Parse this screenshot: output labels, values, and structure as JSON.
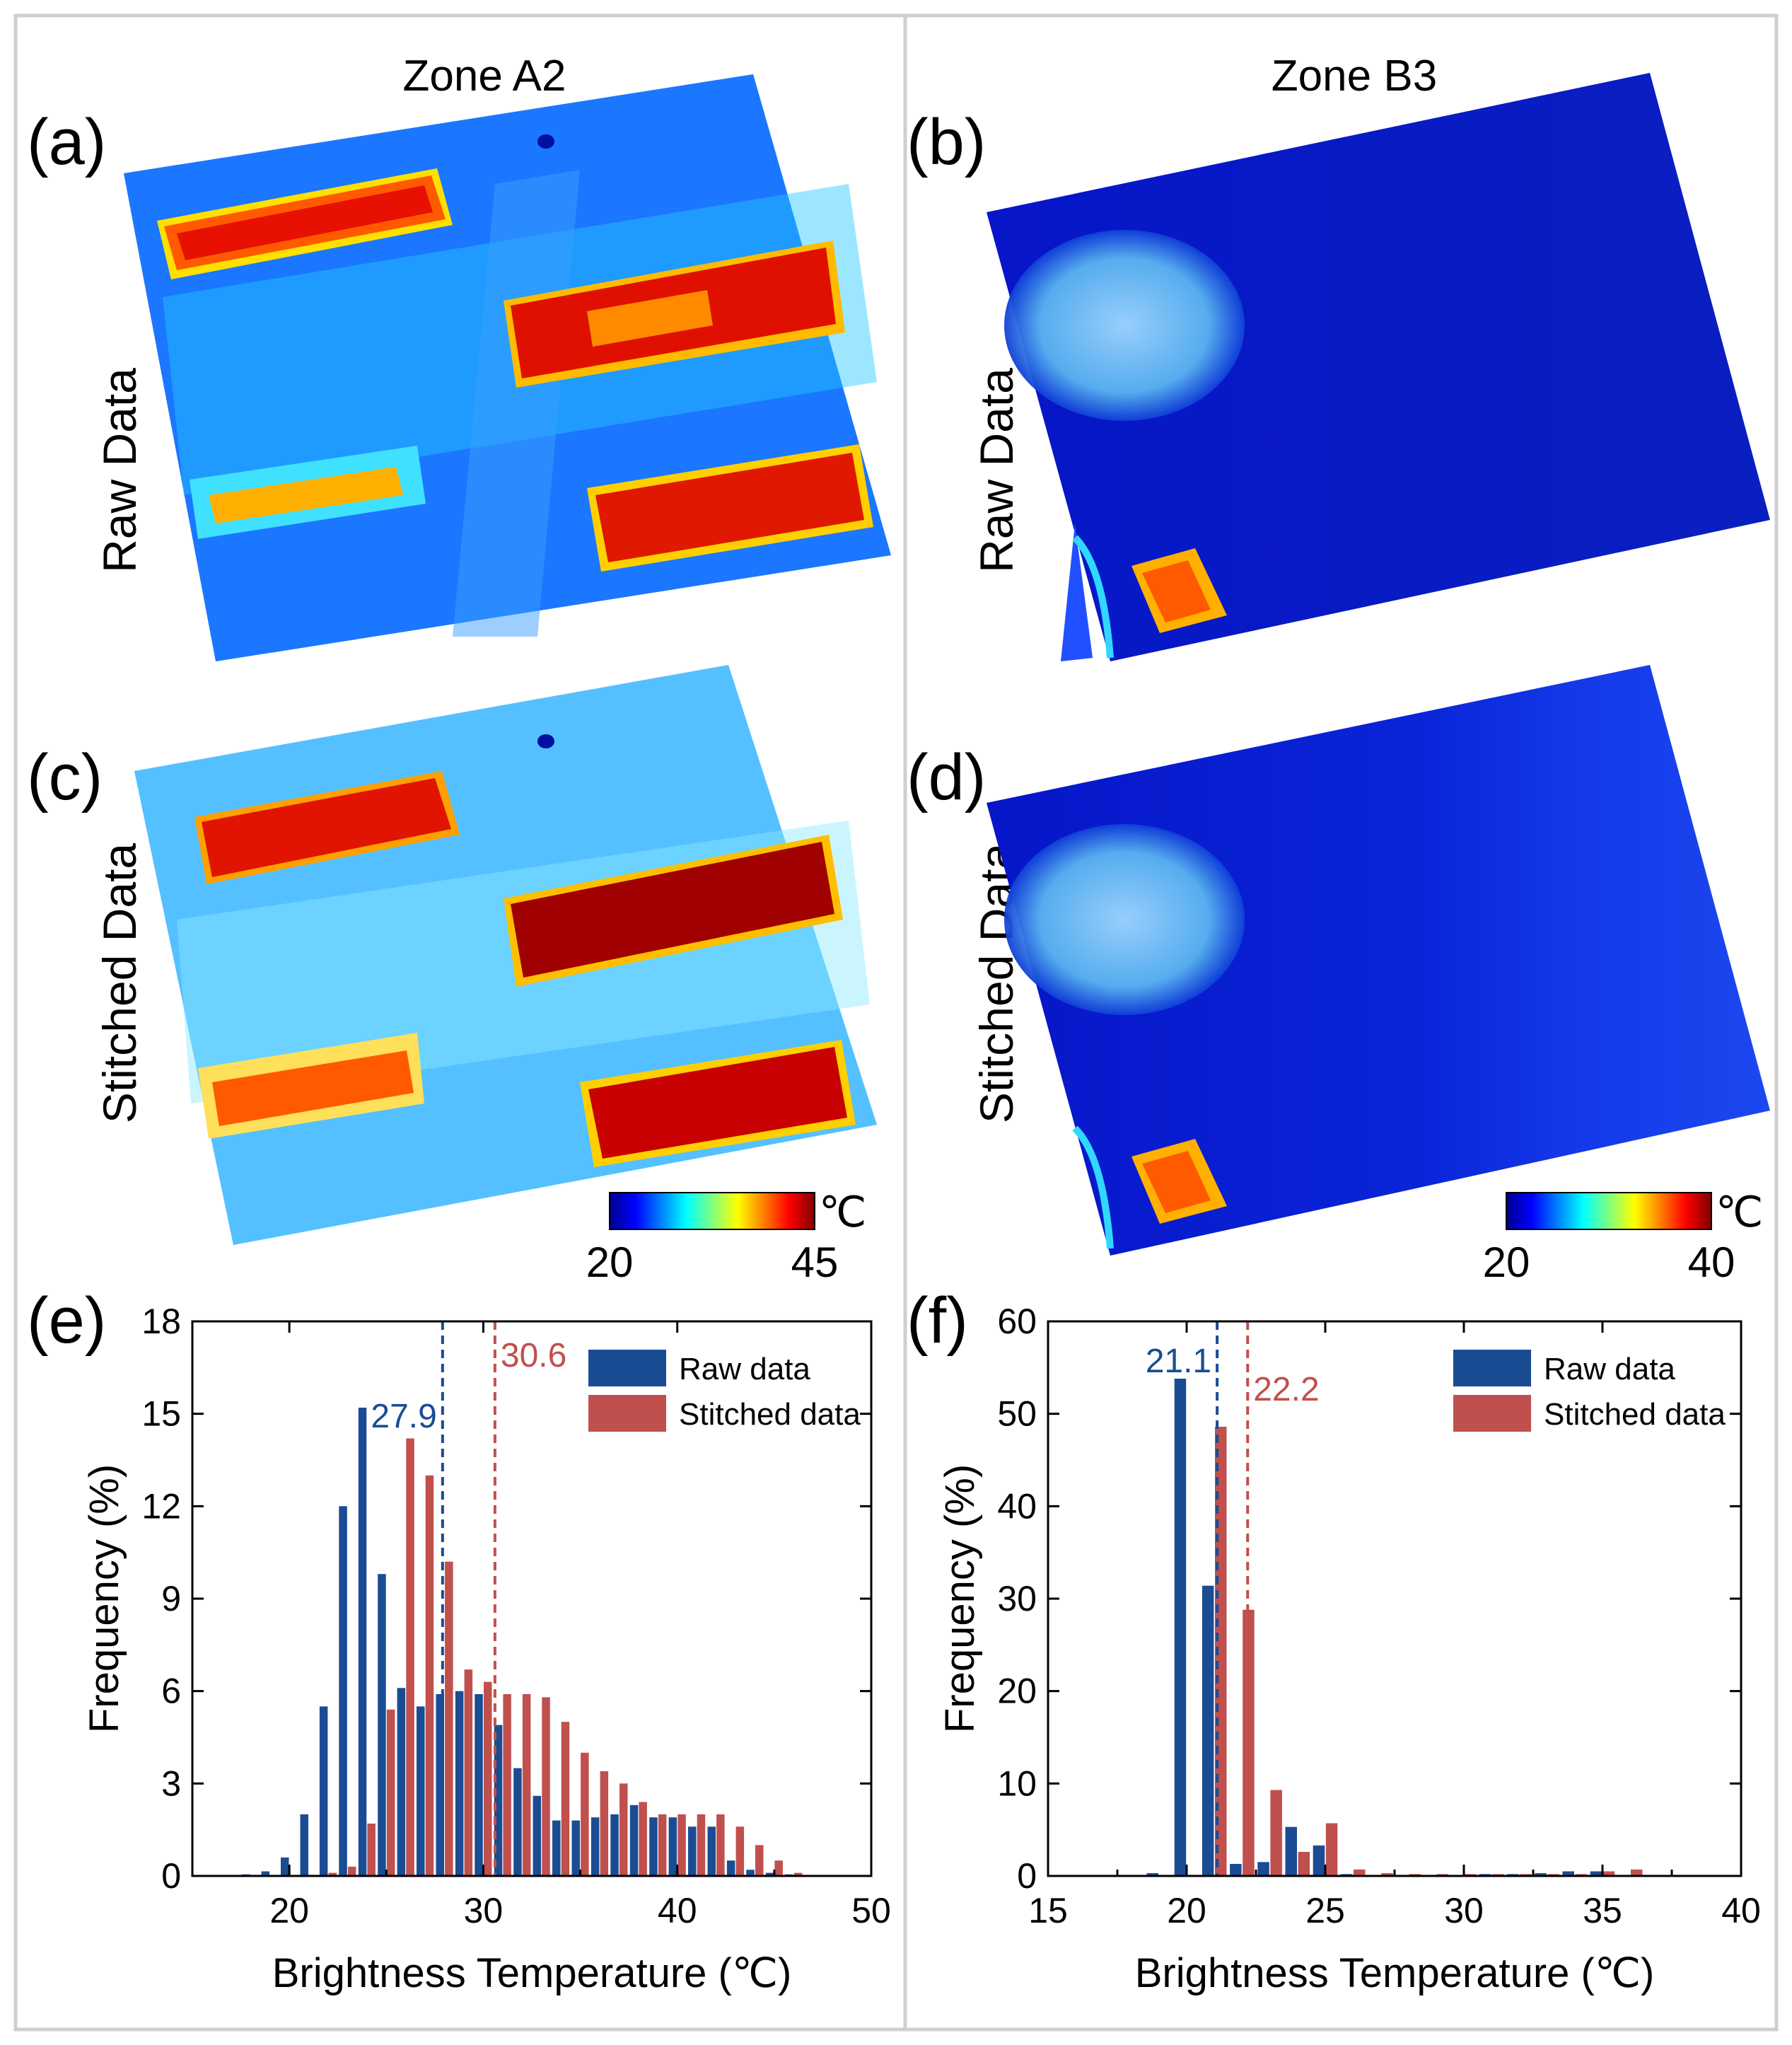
{
  "figure": {
    "columns": [
      {
        "title": "Zone A2"
      },
      {
        "title": "Zone B3"
      }
    ],
    "rows": [
      {
        "label": "Raw Data"
      },
      {
        "label": "Stitched Data"
      }
    ],
    "panels": {
      "a": "(a)",
      "b": "(b)",
      "c": "(c)",
      "d": "(d)",
      "e": "(e)",
      "f": "(f)"
    },
    "colorbars": [
      {
        "min": "20",
        "max": "45",
        "unit": "℃"
      },
      {
        "min": "20",
        "max": "40",
        "unit": "℃"
      }
    ],
    "colors": {
      "raw": "#1a4c93",
      "stitched": "#c0504d",
      "jet": [
        "#00008f",
        "#0000ff",
        "#0080ff",
        "#00ffff",
        "#80ff80",
        "#ffff00",
        "#ff8000",
        "#ff0000",
        "#800000"
      ],
      "frame": "#d0d0d0"
    }
  },
  "chart_data": [
    {
      "panel": "(e)",
      "type": "bar",
      "xlabel": "Brightness Temperature (℃)",
      "ylabel": "Frequency (%)",
      "xlim": [
        15,
        50
      ],
      "ylim": [
        0,
        18
      ],
      "xticks": [
        20,
        30,
        40,
        50
      ],
      "yticks": [
        0,
        3,
        6,
        9,
        12,
        15,
        18
      ],
      "legend": "top-right",
      "x": [
        18,
        19,
        20,
        21,
        22,
        23,
        24,
        25,
        26,
        27,
        28,
        29,
        30,
        31,
        32,
        33,
        34,
        35,
        36,
        37,
        38,
        39,
        40,
        41,
        42,
        43,
        44,
        45,
        46
      ],
      "series": [
        {
          "name": "Raw data",
          "values": [
            0.05,
            0.15,
            0.6,
            2.0,
            5.5,
            12.0,
            15.2,
            9.8,
            6.1,
            5.5,
            5.9,
            6.0,
            5.9,
            4.9,
            3.5,
            2.6,
            1.8,
            1.8,
            1.9,
            2.0,
            2.3,
            1.9,
            1.9,
            1.6,
            1.6,
            0.5,
            0.2,
            0.1,
            0.05
          ]
        },
        {
          "name": "Stitched data",
          "values": [
            0.0,
            0.0,
            0.0,
            0.0,
            0.1,
            0.3,
            1.7,
            5.4,
            14.2,
            13.0,
            10.2,
            6.7,
            6.3,
            5.9,
            5.9,
            5.8,
            5.0,
            4.0,
            3.4,
            3.0,
            2.4,
            2.0,
            2.0,
            2.0,
            2.0,
            1.6,
            1.0,
            0.5,
            0.1
          ]
        }
      ],
      "mean_lines": [
        {
          "name": "Raw data",
          "x": 27.9,
          "label": "27.9"
        },
        {
          "name": "Stitched data",
          "x": 30.6,
          "label": "30.6"
        }
      ]
    },
    {
      "panel": "(f)",
      "type": "bar",
      "xlabel": "Brightness Temperature (℃)",
      "ylabel": "Frequency (%)",
      "xlim": [
        15,
        40
      ],
      "ylim": [
        0,
        60
      ],
      "xticks": [
        15,
        20,
        25,
        30,
        35,
        40
      ],
      "yticks": [
        0,
        10,
        20,
        30,
        40,
        50,
        60
      ],
      "legend": "top-right",
      "x": [
        19,
        20,
        21,
        22,
        23,
        24,
        25,
        26,
        27,
        28,
        29,
        30,
        31,
        32,
        33,
        34,
        35,
        36
      ],
      "series": [
        {
          "name": "Raw data",
          "values": [
            0.3,
            53.8,
            31.4,
            1.3,
            1.5,
            5.3,
            3.3,
            0.2,
            0.1,
            0.1,
            0.1,
            0.1,
            0.2,
            0.2,
            0.3,
            0.5,
            0.5,
            0.1
          ]
        },
        {
          "name": "Stitched data",
          "values": [
            0.0,
            0.0,
            48.6,
            28.8,
            9.3,
            2.6,
            5.7,
            0.7,
            0.3,
            0.2,
            0.2,
            0.2,
            0.2,
            0.2,
            0.2,
            0.2,
            0.5,
            0.7
          ]
        }
      ],
      "mean_lines": [
        {
          "name": "Raw data",
          "x": 21.1,
          "label": "21.1"
        },
        {
          "name": "Stitched data",
          "x": 22.2,
          "label": "22.2"
        }
      ]
    }
  ]
}
